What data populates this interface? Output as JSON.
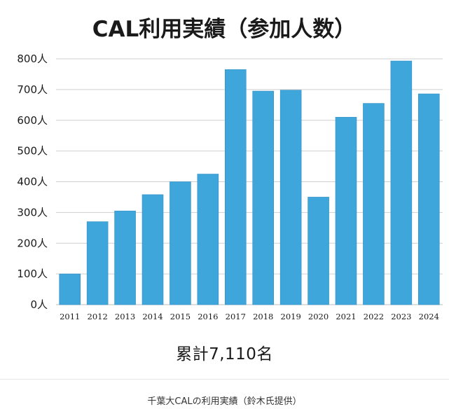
{
  "chart_data": {
    "type": "bar",
    "title": "CAL利用実績（参加人数）",
    "categories": [
      "2011",
      "2012",
      "2013",
      "2014",
      "2015",
      "2016",
      "2017",
      "2018",
      "2019",
      "2020",
      "2021",
      "2022",
      "2023",
      "2024"
    ],
    "values": [
      100,
      270,
      305,
      358,
      400,
      425,
      765,
      695,
      698,
      350,
      610,
      655,
      793,
      686
    ],
    "ylim": [
      0,
      800
    ],
    "yticks": [
      "0人",
      "100人",
      "200人",
      "300人",
      "400人",
      "500人",
      "600人",
      "700人",
      "800人"
    ],
    "grid": true,
    "bar_color": "#3fa6dc"
  },
  "total_label": "累計7,110名",
  "caption": "千葉大CALの利用実績（鈴木氏提供）"
}
